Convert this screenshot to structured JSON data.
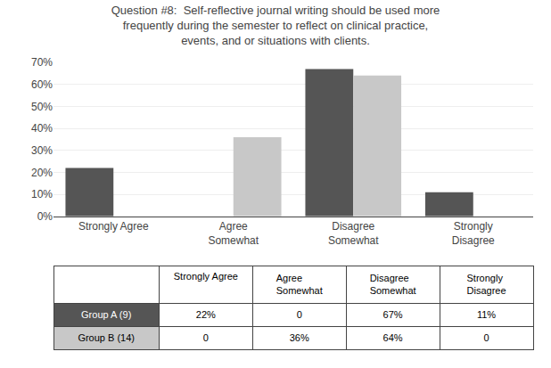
{
  "chart_data": {
    "type": "bar",
    "title": "Question #8:  Self-reflective journal writing should be used more\nfrequently during the semester to reflect on clinical practice,\nevents, and or situations with clients.",
    "categories": [
      "Strongly Agree",
      "Agree\nSomewhat",
      "Disagree\nSomewhat",
      "Strongly\nDisagree"
    ],
    "series": [
      {
        "name": "Group A (9)",
        "color": "#555555",
        "values": [
          22,
          0,
          67,
          11
        ],
        "value_labels": [
          "22%",
          "0",
          "67%",
          "11%"
        ]
      },
      {
        "name": "Group B (14)",
        "color": "#c8c8c8",
        "values": [
          0,
          36,
          64,
          0
        ],
        "value_labels": [
          "0",
          "36%",
          "64%",
          "0"
        ]
      }
    ],
    "ylim": [
      0,
      70
    ],
    "yticks": [
      {
        "value": 0,
        "label": "0%"
      },
      {
        "value": 10,
        "label": "10%"
      },
      {
        "value": 20,
        "label": "20%"
      },
      {
        "value": 30,
        "label": "30%"
      },
      {
        "value": 40,
        "label": "40%"
      },
      {
        "value": 50,
        "label": "50%"
      },
      {
        "value": 60,
        "label": "60%"
      },
      {
        "value": 70,
        "label": "70%"
      }
    ],
    "grid": true
  }
}
